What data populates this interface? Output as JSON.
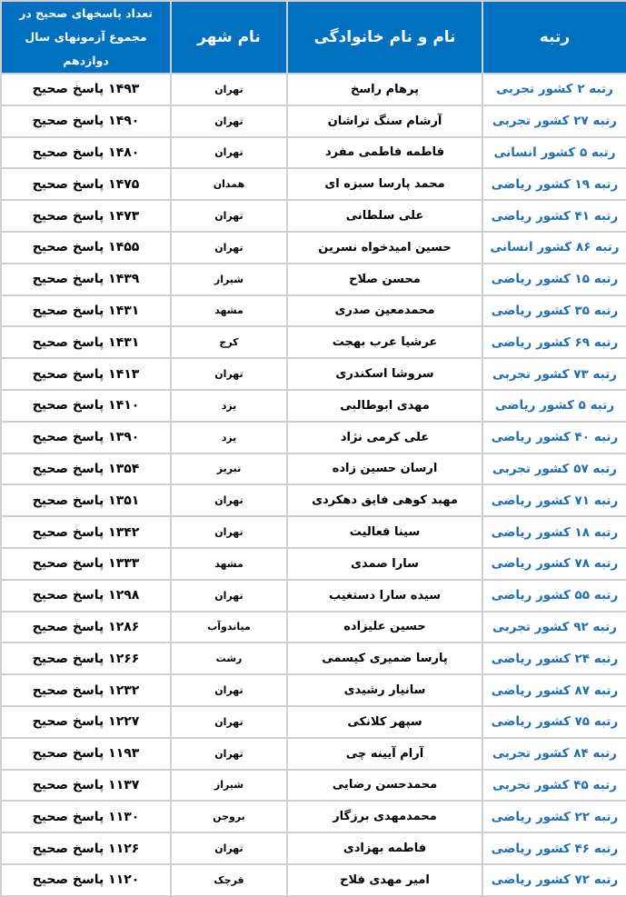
{
  "header": {
    "rank": "رتبه",
    "name": "نام و نام خانوادگی",
    "city": "نام شهر",
    "answers": "تعداد پاسخهای صحیح در مجموع آزمونهای سال دوازدهم"
  },
  "colors": {
    "header_bg": "#0070c0",
    "rank_text": "#1f6fb8"
  },
  "rows": [
    {
      "rank": "رتبه ۲ کشور تجربی",
      "name": "پرهام راسخ",
      "city": "تهران",
      "answers": "۱۴۹۳ پاسخ صحیح"
    },
    {
      "rank": "رتبه ۲۷ کشور تجربی",
      "name": "آرشام سنگ تراشان",
      "city": "تهران",
      "answers": "۱۴۹۰ پاسخ صحیح"
    },
    {
      "rank": "رتبه ۵ کشور انسانی",
      "name": "فاطمه فاطمی مفرد",
      "city": "تهران",
      "answers": "۱۴۸۰ پاسخ صحیح"
    },
    {
      "rank": "رتبه ۱۹ کشور ریاضی",
      "name": "محمد پارسا سبزه ای",
      "city": "همدان",
      "answers": "۱۴۷۵ پاسخ صحیح"
    },
    {
      "rank": "رتبه ۴۱ کشور ریاضی",
      "name": "علی سلطانی",
      "city": "تهران",
      "answers": "۱۴۷۳ پاسخ صحیح"
    },
    {
      "rank": "رتبه ۸۶ کشور انسانی",
      "name": "حسین امیدخواه نسرین",
      "city": "تهران",
      "answers": "۱۴۵۵ پاسخ صحیح"
    },
    {
      "rank": "رتبه ۱۵ کشور ریاضی",
      "name": "محسن صلاح",
      "city": "شیراز",
      "answers": "۱۴۳۹ پاسخ صحیح"
    },
    {
      "rank": "رتبه ۳۵ کشور ریاضی",
      "name": "محمدمعین صدری",
      "city": "مشهد",
      "answers": "۱۴۳۱ پاسخ صحیح"
    },
    {
      "rank": "رتبه ۶۹ کشور ریاضی",
      "name": "عرشیا عرب بهجت",
      "city": "کرج",
      "answers": "۱۴۳۱ پاسخ صحیح"
    },
    {
      "rank": "رتبه ۷۳ کشور تجربی",
      "name": "سروشا اسکندری",
      "city": "تهران",
      "answers": "۱۴۱۳ پاسخ صحیح"
    },
    {
      "rank": "رتبه ۵ کشور ریاضی",
      "name": "مهدی ابوطالبی",
      "city": "یزد",
      "answers": "۱۴۱۰ پاسخ صحیح"
    },
    {
      "rank": "رتبه ۴۰ کشور ریاضی",
      "name": "علی کرمی نژاد",
      "city": "یزد",
      "answers": "۱۳۹۰ پاسخ صحیح"
    },
    {
      "rank": "رتبه ۵۷ کشور تجربی",
      "name": "ارسان حسین زاده",
      "city": "تبریز",
      "answers": "۱۳۵۴ پاسخ صحیح"
    },
    {
      "rank": "رتبه ۷۱ کشور ریاضی",
      "name": "مهبد کوهی فایق دهکردی",
      "city": "تهران",
      "answers": "۱۳۵۱ پاسخ صحیح"
    },
    {
      "rank": "رتبه ۱۸ کشور ریاضی",
      "name": "سینا فعالیت",
      "city": "تهران",
      "answers": "۱۳۴۲ پاسخ صحیح"
    },
    {
      "rank": "رتبه ۷۸ کشور ریاضی",
      "name": "سارا صمدی",
      "city": "مشهد",
      "answers": "۱۳۳۳ پاسخ صحیح"
    },
    {
      "rank": "رتبه ۵۵ کشور ریاضی",
      "name": "سیده سارا دستغیب",
      "city": "تهران",
      "answers": "۱۲۹۸ پاسخ صحیح"
    },
    {
      "rank": "رتبه ۹۲ کشور تجربی",
      "name": "حسین علیزاده",
      "city": "میاندوآب",
      "answers": "۱۲۸۶ پاسخ صحیح"
    },
    {
      "rank": "رتبه ۲۴ کشور ریاضی",
      "name": "پارسا ضمیری کیسمی",
      "city": "رشت",
      "answers": "۱۲۶۶ پاسخ صحیح"
    },
    {
      "rank": "رتبه ۸۷ کشور ریاضی",
      "name": "سانیار رشیدی",
      "city": "تهران",
      "answers": "۱۲۳۲ پاسخ صحیح"
    },
    {
      "rank": "رتبه ۷۵ کشور ریاضی",
      "name": "سپهر کلانکی",
      "city": "تهران",
      "answers": "۱۲۲۷ پاسخ صحیح"
    },
    {
      "rank": "رتبه ۸۴ کشور تجربی",
      "name": "آرام آیینه چی",
      "city": "تهران",
      "answers": "۱۱۹۳ پاسخ صحیح"
    },
    {
      "rank": "رتبه ۴۵ کشور تجربی",
      "name": "محمدحسن رضایی",
      "city": "شیراز",
      "answers": "۱۱۳۷ پاسخ صحیح"
    },
    {
      "rank": "رتبه ۲۲ کشور ریاضی",
      "name": "محمدمهدی برزگار",
      "city": "بروجن",
      "answers": "۱۱۳۰ پاسخ صحیح"
    },
    {
      "rank": "رتبه ۴۶ کشور ریاضی",
      "name": "فاطمه بهزادی",
      "city": "تهران",
      "answers": "۱۱۲۶ پاسخ صحیح"
    },
    {
      "rank": "رتبه ۷۲ کشور ریاضی",
      "name": "امیر مهدی فلاح",
      "city": "قرچک",
      "answers": "۱۱۲۰ پاسخ صحیح"
    }
  ]
}
